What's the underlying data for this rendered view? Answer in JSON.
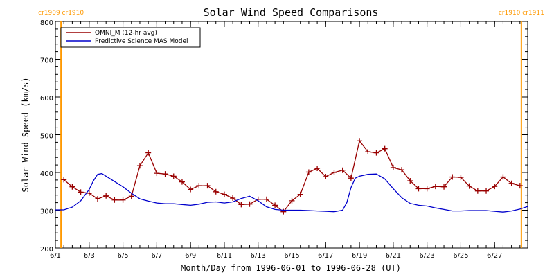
{
  "chart_data": {
    "type": "line",
    "title": "Solar Wind Speed Comparisons",
    "xlabel": "Month/Day from 1996-06-01 to 1996-06-28 (UT)",
    "ylabel": "Solar Wind Speed (km/s)",
    "ylim": [
      200,
      800
    ],
    "xlim": [
      "1996-06-01",
      "1996-06-28T23:00"
    ],
    "y_ticks": [
      200,
      300,
      400,
      500,
      600,
      700,
      800
    ],
    "x_ticks": [
      {
        "date": "1996-06-01",
        "label": "6/1"
      },
      {
        "date": "1996-06-03",
        "label": "6/3"
      },
      {
        "date": "1996-06-05",
        "label": "6/5"
      },
      {
        "date": "1996-06-07",
        "label": "6/7"
      },
      {
        "date": "1996-06-09",
        "label": "6/9"
      },
      {
        "date": "1996-06-11",
        "label": "6/11"
      },
      {
        "date": "1996-06-13",
        "label": "6/13"
      },
      {
        "date": "1996-06-15",
        "label": "6/15"
      },
      {
        "date": "1996-06-17",
        "label": "6/17"
      },
      {
        "date": "1996-06-19",
        "label": "6/19"
      },
      {
        "date": "1996-06-21",
        "label": "6/21"
      },
      {
        "date": "1996-06-23",
        "label": "6/23"
      },
      {
        "date": "1996-06-25",
        "label": "6/25"
      },
      {
        "date": "1996-06-27",
        "label": "6/27"
      }
    ],
    "grid": false,
    "legend_position": "top-left",
    "series": [
      {
        "name": "OMNI_M (12-hr avg)",
        "color": "#990000",
        "marker": "plus",
        "points": [
          [
            "1996-06-01T12:00",
            381
          ],
          [
            "1996-06-02T00:00",
            362
          ],
          [
            "1996-06-02T12:00",
            348
          ],
          [
            "1996-06-03T00:00",
            345
          ],
          [
            "1996-06-03T12:00",
            330
          ],
          [
            "1996-06-04T00:00",
            338
          ],
          [
            "1996-06-04T12:00",
            327
          ],
          [
            "1996-06-05T00:00",
            327
          ],
          [
            "1996-06-05T12:00",
            337
          ],
          [
            "1996-06-06T00:00",
            418
          ],
          [
            "1996-06-06T12:00",
            452
          ],
          [
            "1996-06-07T00:00",
            398
          ],
          [
            "1996-06-07T12:00",
            396
          ],
          [
            "1996-06-08T00:00",
            390
          ],
          [
            "1996-06-08T12:00",
            375
          ],
          [
            "1996-06-09T00:00",
            355
          ],
          [
            "1996-06-09T12:00",
            365
          ],
          [
            "1996-06-10T00:00",
            365
          ],
          [
            "1996-06-10T12:00",
            349
          ],
          [
            "1996-06-11T00:00",
            342
          ],
          [
            "1996-06-11T12:00",
            332
          ],
          [
            "1996-06-12T00:00",
            315
          ],
          [
            "1996-06-12T12:00",
            316
          ],
          [
            "1996-06-13T00:00",
            329
          ],
          [
            "1996-06-13T12:00",
            329
          ],
          [
            "1996-06-14T00:00",
            313
          ],
          [
            "1996-06-14T12:00",
            296
          ],
          [
            "1996-06-15T00:00",
            325
          ],
          [
            "1996-06-15T12:00",
            342
          ],
          [
            "1996-06-16T00:00",
            401
          ],
          [
            "1996-06-16T12:00",
            411
          ],
          [
            "1996-06-17T00:00",
            389
          ],
          [
            "1996-06-17T12:00",
            400
          ],
          [
            "1996-06-18T00:00",
            406
          ],
          [
            "1996-06-18T12:00",
            385
          ],
          [
            "1996-06-19T00:00",
            484
          ],
          [
            "1996-06-19T12:00",
            455
          ],
          [
            "1996-06-20T00:00",
            452
          ],
          [
            "1996-06-20T12:00",
            463
          ],
          [
            "1996-06-21T00:00",
            413
          ],
          [
            "1996-06-21T12:00",
            407
          ],
          [
            "1996-06-22T00:00",
            378
          ],
          [
            "1996-06-22T12:00",
            357
          ],
          [
            "1996-06-23T00:00",
            357
          ],
          [
            "1996-06-23T12:00",
            363
          ],
          [
            "1996-06-24T00:00",
            362
          ],
          [
            "1996-06-24T12:00",
            388
          ],
          [
            "1996-06-25T00:00",
            387
          ],
          [
            "1996-06-25T12:00",
            364
          ],
          [
            "1996-06-26T00:00",
            351
          ],
          [
            "1996-06-26T12:00",
            351
          ],
          [
            "1996-06-27T00:00",
            363
          ],
          [
            "1996-06-27T12:00",
            388
          ],
          [
            "1996-06-28T00:00",
            371
          ],
          [
            "1996-06-28T12:00",
            365
          ]
        ]
      },
      {
        "name": "Predictive Science MAS Model",
        "color": "#0000cc",
        "marker": "none",
        "points": [
          [
            "1996-06-01T00:00",
            301
          ],
          [
            "1996-06-01T12:00",
            301
          ],
          [
            "1996-06-02T00:00",
            308
          ],
          [
            "1996-06-02T12:00",
            325
          ],
          [
            "1996-06-03T00:00",
            355
          ],
          [
            "1996-06-03T06:00",
            378
          ],
          [
            "1996-06-03T12:00",
            395
          ],
          [
            "1996-06-03T18:00",
            397
          ],
          [
            "1996-06-04T00:00",
            390
          ],
          [
            "1996-06-04T12:00",
            376
          ],
          [
            "1996-06-05T00:00",
            362
          ],
          [
            "1996-06-05T12:00",
            345
          ],
          [
            "1996-06-06T00:00",
            330
          ],
          [
            "1996-06-06T12:00",
            324
          ],
          [
            "1996-06-07T00:00",
            319
          ],
          [
            "1996-06-07T12:00",
            317
          ],
          [
            "1996-06-08T00:00",
            317
          ],
          [
            "1996-06-08T12:00",
            315
          ],
          [
            "1996-06-09T00:00",
            313
          ],
          [
            "1996-06-09T12:00",
            316
          ],
          [
            "1996-06-10T00:00",
            321
          ],
          [
            "1996-06-10T12:00",
            322
          ],
          [
            "1996-06-11T00:00",
            319
          ],
          [
            "1996-06-11T12:00",
            322
          ],
          [
            "1996-06-12T00:00",
            331
          ],
          [
            "1996-06-12T12:00",
            337
          ],
          [
            "1996-06-13T00:00",
            325
          ],
          [
            "1996-06-13T12:00",
            309
          ],
          [
            "1996-06-14T00:00",
            302
          ],
          [
            "1996-06-14T12:00",
            300
          ],
          [
            "1996-06-15T00:00",
            300
          ],
          [
            "1996-06-15T12:00",
            300
          ],
          [
            "1996-06-16T00:00",
            299
          ],
          [
            "1996-06-16T12:00",
            298
          ],
          [
            "1996-06-17T00:00",
            297
          ],
          [
            "1996-06-17T12:00",
            296
          ],
          [
            "1996-06-18T00:00",
            300
          ],
          [
            "1996-06-18T06:00",
            320
          ],
          [
            "1996-06-18T12:00",
            360
          ],
          [
            "1996-06-18T18:00",
            385
          ],
          [
            "1996-06-19T00:00",
            390
          ],
          [
            "1996-06-19T12:00",
            395
          ],
          [
            "1996-06-20T00:00",
            396
          ],
          [
            "1996-06-20T12:00",
            383
          ],
          [
            "1996-06-21T00:00",
            357
          ],
          [
            "1996-06-21T12:00",
            333
          ],
          [
            "1996-06-22T00:00",
            318
          ],
          [
            "1996-06-22T12:00",
            313
          ],
          [
            "1996-06-23T00:00",
            311
          ],
          [
            "1996-06-23T12:00",
            306
          ],
          [
            "1996-06-24T00:00",
            302
          ],
          [
            "1996-06-24T12:00",
            298
          ],
          [
            "1996-06-25T00:00",
            298
          ],
          [
            "1996-06-25T12:00",
            299
          ],
          [
            "1996-06-26T00:00",
            299
          ],
          [
            "1996-06-26T12:00",
            299
          ],
          [
            "1996-06-27T00:00",
            297
          ],
          [
            "1996-06-27T12:00",
            295
          ],
          [
            "1996-06-28T00:00",
            298
          ],
          [
            "1996-06-28T12:00",
            303
          ],
          [
            "1996-06-28T23:00",
            310
          ]
        ]
      }
    ],
    "carrington_markers": [
      {
        "date": "1996-06-01T08:00",
        "label_left": "cr1909",
        "label_right": "cr1910",
        "color": "#ff9900"
      },
      {
        "date": "1996-06-28T14:00",
        "label_left": "cr1910",
        "label_right": "cr1911",
        "color": "#ff9900"
      }
    ]
  }
}
